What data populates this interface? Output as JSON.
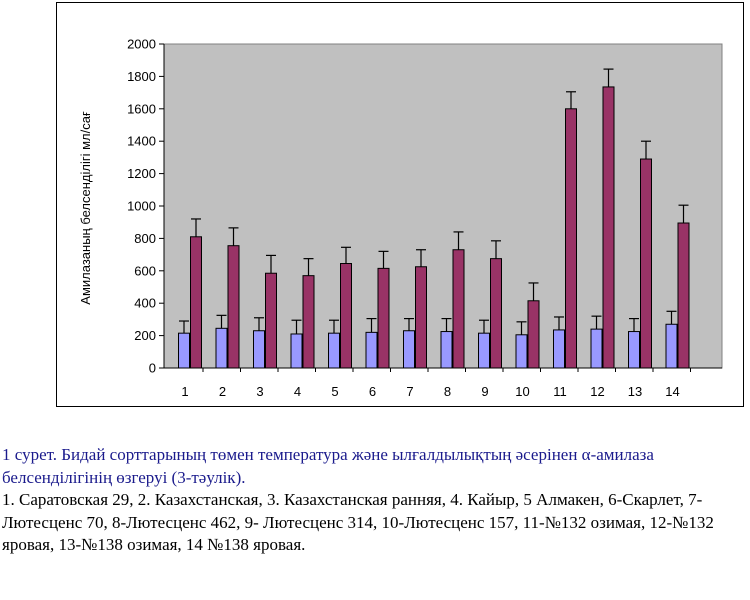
{
  "chart_data": {
    "type": "bar",
    "ylabel": "Амилазаның белсенділігі мл/сағ",
    "ylim": [
      0,
      2000
    ],
    "yticks": [
      0,
      200,
      400,
      600,
      800,
      1000,
      1200,
      1400,
      1600,
      1800,
      2000
    ],
    "categories": [
      "1",
      "2",
      "3",
      "4",
      "5",
      "6",
      "7",
      "8",
      "9",
      "10",
      "11",
      "12",
      "13",
      "14"
    ],
    "series": [
      {
        "color": "#9999ff",
        "values": [
          215,
          245,
          230,
          210,
          215,
          220,
          230,
          225,
          215,
          205,
          235,
          240,
          225,
          270
        ],
        "errors": [
          75,
          80,
          80,
          85,
          80,
          85,
          75,
          80,
          80,
          80,
          80,
          80,
          80,
          80
        ]
      },
      {
        "color": "#993366",
        "values": [
          810,
          755,
          585,
          570,
          645,
          615,
          625,
          730,
          675,
          415,
          1600,
          1735,
          1290,
          895
        ],
        "errors": [
          110,
          110,
          110,
          105,
          100,
          105,
          105,
          110,
          110,
          110,
          105,
          110,
          110,
          110
        ]
      }
    ],
    "grid": false,
    "plot_background": "#c0c0c0"
  },
  "caption": {
    "title": "1 сурет.   Бидай сорттарының төмен температура және ылғалдылықтың әсерінен α-амилаза белсенділігінің өзгеруі (3-тәулік).",
    "legend_text": "1. Саратовская 29, 2. Казахстанская, 3. Казахстанская ранняя, 4. Кайыр,   5 Алмакен, 6-Скарлет, 7-Лютесценс 70, 8-Лютесценс 462, 9- Лютесценс  314, 10-Лютесценс  157, 11-№132 озимая, 12-№132 яровая, 13-№138 озимая, 14 №138 яровая."
  }
}
